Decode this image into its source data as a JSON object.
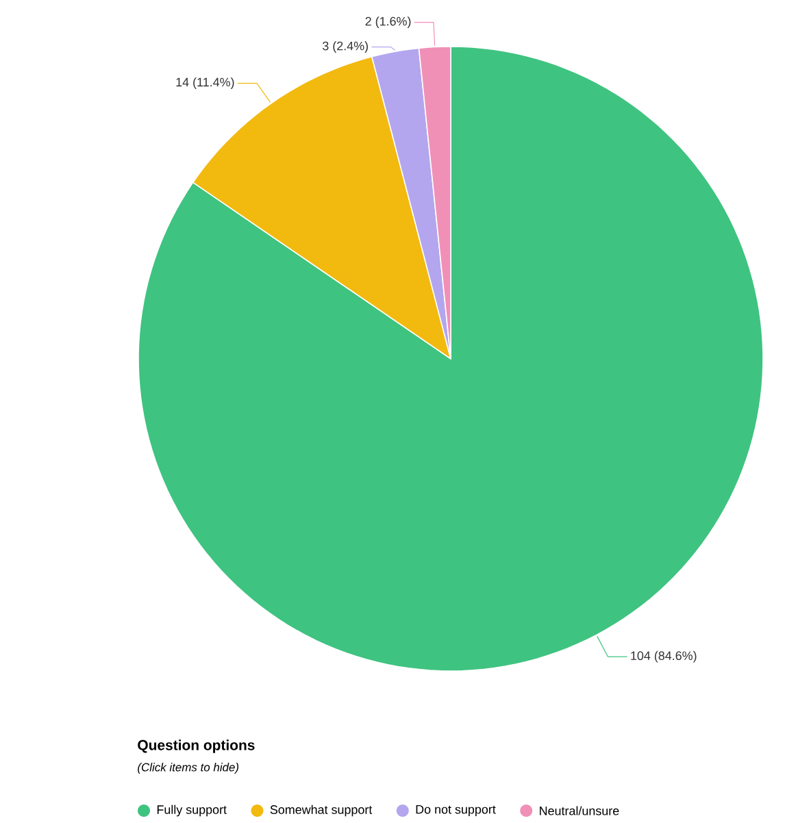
{
  "chart_data": {
    "type": "pie",
    "categories": [
      "Fully support",
      "Somewhat support",
      "Do not support",
      "Neutral/unsure"
    ],
    "values": [
      104,
      14,
      3,
      2
    ],
    "value_labels": [
      "104 (84.6%)",
      "14 (11.4%)",
      "3 (2.4%)",
      "2 (1.6%)"
    ],
    "colors": [
      "#3fc380",
      "#f2b90f",
      "#b3a6ee",
      "#f190b7"
    ],
    "legend": "bottom",
    "legend_title": "Question options",
    "annotations": [
      "(Click items to hide)"
    ]
  }
}
